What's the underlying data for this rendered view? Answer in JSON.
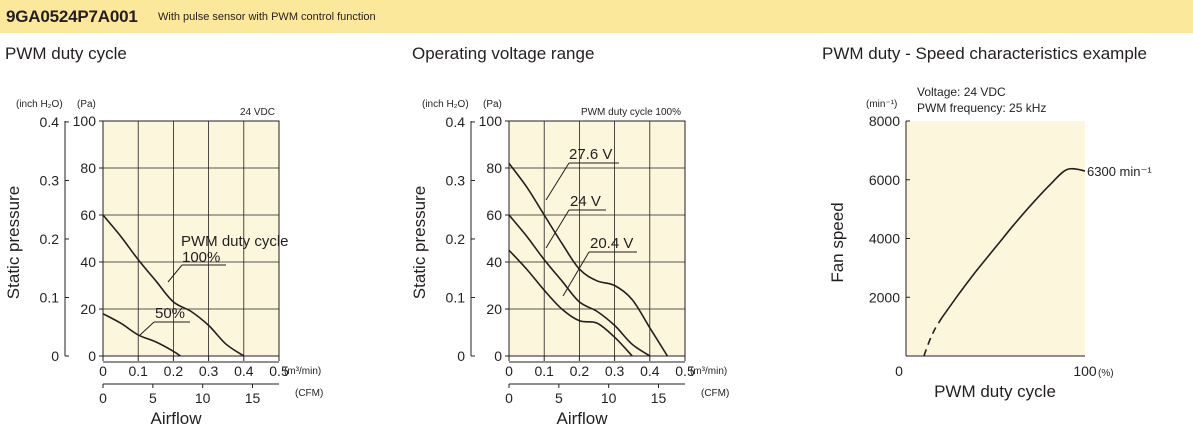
{
  "header": {
    "model": "9GA0524P7A001",
    "description": "With pulse sensor with PWM control function"
  },
  "chart_data": [
    {
      "type": "line",
      "title": "PWM duty cycle",
      "condition_label": "24 VDC",
      "xlabel": "Airflow",
      "ylabel": "Static pressure",
      "x_units": [
        "(m³/min)",
        "(CFM)"
      ],
      "y_units": [
        "(inch H₂O)",
        "(Pa)"
      ],
      "xlim": [
        0,
        0.5
      ],
      "ylim": [
        0,
        100
      ],
      "x_ticks": [
        "0",
        "0.1",
        "0.2",
        "0.3",
        "0.4",
        "0.5"
      ],
      "x_ticks_cfm": [
        "0",
        "5",
        "10",
        "15"
      ],
      "y_ticks": [
        "0",
        "20",
        "40",
        "60",
        "80",
        "100"
      ],
      "y_ticks_inch": [
        "0",
        "0.1",
        "0.2",
        "0.3",
        "0.4"
      ],
      "grid": true,
      "legend_label": "PWM duty cycle",
      "series": [
        {
          "name": "100%",
          "x": [
            0,
            0.05,
            0.1,
            0.15,
            0.2,
            0.25,
            0.3,
            0.35,
            0.4
          ],
          "y": [
            60,
            51,
            41,
            32,
            23,
            19,
            13,
            5,
            0
          ]
        },
        {
          "name": "50%",
          "x": [
            0,
            0.05,
            0.1,
            0.15,
            0.2,
            0.22
          ],
          "y": [
            18,
            14,
            9,
            6,
            2,
            0
          ]
        }
      ]
    },
    {
      "type": "line",
      "title": "Operating voltage range",
      "condition_label": "PWM duty cycle 100%",
      "xlabel": "Airflow",
      "ylabel": "Static pressure",
      "x_units": [
        "(m³/min)",
        "(CFM)"
      ],
      "y_units": [
        "(inch H₂O)",
        "(Pa)"
      ],
      "xlim": [
        0,
        0.5
      ],
      "ylim": [
        0,
        100
      ],
      "x_ticks": [
        "0",
        "0.1",
        "0.2",
        "0.3",
        "0.4",
        "0.5"
      ],
      "x_ticks_cfm": [
        "0",
        "5",
        "10",
        "15"
      ],
      "y_ticks": [
        "0",
        "20",
        "40",
        "60",
        "80",
        "100"
      ],
      "y_ticks_inch": [
        "0",
        "0.1",
        "0.2",
        "0.3",
        "0.4"
      ],
      "grid": true,
      "series": [
        {
          "name": "27.6 V",
          "x": [
            0,
            0.05,
            0.1,
            0.15,
            0.2,
            0.25,
            0.3,
            0.35,
            0.4,
            0.45
          ],
          "y": [
            82,
            72,
            60,
            48,
            37,
            32,
            30,
            24,
            12,
            0
          ]
        },
        {
          "name": "24 V",
          "x": [
            0,
            0.05,
            0.1,
            0.15,
            0.2,
            0.25,
            0.3,
            0.35,
            0.4
          ],
          "y": [
            60,
            51,
            41,
            32,
            23,
            19,
            13,
            5,
            0
          ]
        },
        {
          "name": "20.4 V",
          "x": [
            0,
            0.05,
            0.1,
            0.15,
            0.2,
            0.25,
            0.3,
            0.35
          ],
          "y": [
            45,
            37,
            28,
            20,
            15,
            14,
            8,
            0
          ]
        }
      ]
    },
    {
      "type": "line",
      "title": "PWM duty - Speed characteristics example",
      "condition_lines": [
        "Voltage: 24 VDC",
        "PWM frequency: 25 kHz"
      ],
      "xlabel": "PWM duty cycle",
      "ylabel": "Fan speed",
      "x_unit": "(%)",
      "y_unit": "(min⁻¹)",
      "xlim": [
        0,
        100
      ],
      "ylim": [
        0,
        8000
      ],
      "x_ticks": [
        "0",
        "100"
      ],
      "y_ticks": [
        "2000",
        "4000",
        "6000",
        "8000"
      ],
      "grid": false,
      "end_label": "6300 min⁻¹",
      "series": [
        {
          "name": "",
          "x": [
            10,
            13,
            16,
            20
          ],
          "y": [
            0,
            500,
            900,
            1300
          ],
          "style": "dashed"
        },
        {
          "name": "",
          "x": [
            20,
            30,
            40,
            50,
            60,
            70,
            80,
            90,
            100
          ],
          "y": [
            1300,
            2150,
            2950,
            3700,
            4450,
            5150,
            5800,
            6350,
            6300
          ],
          "style": "solid"
        }
      ]
    }
  ]
}
